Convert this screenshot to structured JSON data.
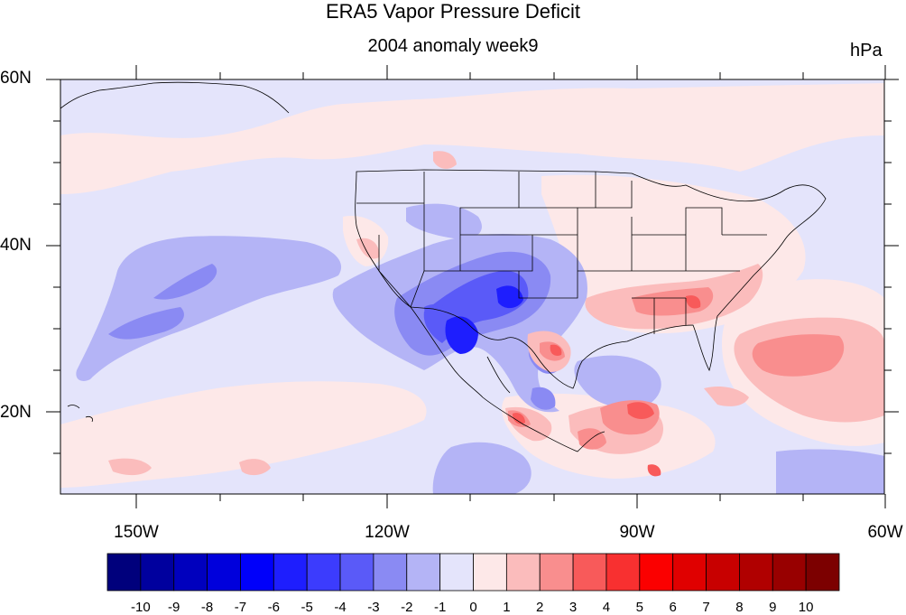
{
  "title": "ERA5 Vapor Pressure Deficit",
  "subtitle": "2004 anomaly week9",
  "units": "hPa",
  "lat_labels": [
    "60N",
    "40N",
    "20N"
  ],
  "lon_labels": [
    "150W",
    "120W",
    "90W",
    "60W"
  ],
  "map_extent": {
    "lon_min": -159,
    "lon_max": -61,
    "lat_min": 10,
    "lat_max": 60
  },
  "colorbar": {
    "labels": [
      "-10",
      "-9",
      "-8",
      "-7",
      "-6",
      "-5",
      "-4",
      "-3",
      "-2",
      "-1",
      "0",
      "1",
      "2",
      "3",
      "4",
      "5",
      "6",
      "7",
      "8",
      "9",
      "10"
    ],
    "colors": [
      "#00007c",
      "#00009e",
      "#0000be",
      "#0000dc",
      "#0000fa",
      "#1e1efe",
      "#3c3cfd",
      "#5a5af8",
      "#8a8af3",
      "#b4b4f6",
      "#e4e4fb",
      "#fde8e8",
      "#fbbcbc",
      "#f98e8e",
      "#f85a5a",
      "#f83030",
      "#fb0000",
      "#e00000",
      "#c80000",
      "#b00000",
      "#980000",
      "#7c0000"
    ]
  },
  "colors": {
    "background": "#e4e4fb",
    "land_border": "#000000"
  }
}
